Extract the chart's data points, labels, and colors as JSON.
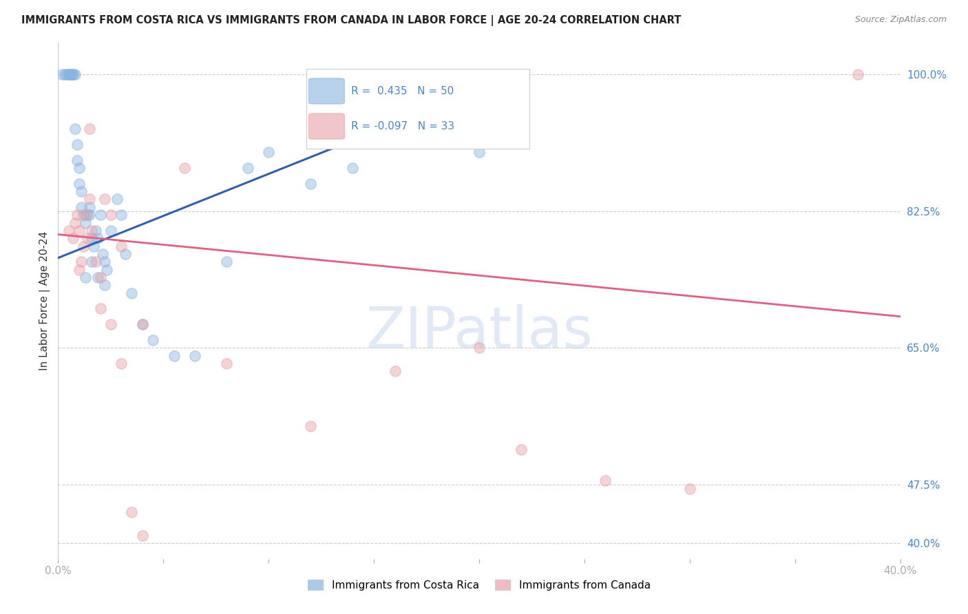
{
  "title": "IMMIGRANTS FROM COSTA RICA VS IMMIGRANTS FROM CANADA IN LABOR FORCE | AGE 20-24 CORRELATION CHART",
  "source": "Source: ZipAtlas.com",
  "ylabel": "In Labor Force | Age 20-24",
  "xlim": [
    0.0,
    0.4
  ],
  "ylim": [
    0.38,
    1.04
  ],
  "xticks": [
    0.0,
    0.05,
    0.1,
    0.15,
    0.2,
    0.25,
    0.3,
    0.35,
    0.4
  ],
  "xticklabels": [
    "0.0%",
    "",
    "",
    "",
    "",
    "",
    "",
    "",
    "40.0%"
  ],
  "yticks_right": [
    0.4,
    0.475,
    0.65,
    0.825,
    1.0
  ],
  "yticklabels_right": [
    "40.0%",
    "47.5%",
    "65.0%",
    "82.5%",
    "100.0%"
  ],
  "grid_color": "#cccccc",
  "background_color": "#ffffff",
  "blue_color": "#8ab4e0",
  "pink_color": "#e8a0a8",
  "blue_R": 0.435,
  "blue_N": 50,
  "pink_R": -0.097,
  "pink_N": 33,
  "blue_line_color": "#3060b0",
  "pink_line_color": "#e06080",
  "legend_label_blue": "Immigrants from Costa Rica",
  "legend_label_pink": "Immigrants from Canada",
  "watermark": "ZIPatlas",
  "blue_x": [
    0.002,
    0.003,
    0.004,
    0.005,
    0.005,
    0.006,
    0.006,
    0.007,
    0.007,
    0.008,
    0.008,
    0.009,
    0.009,
    0.01,
    0.01,
    0.011,
    0.011,
    0.012,
    0.013,
    0.014,
    0.015,
    0.015,
    0.016,
    0.017,
    0.018,
    0.019,
    0.02,
    0.021,
    0.022,
    0.023,
    0.025,
    0.028,
    0.03,
    0.032,
    0.035,
    0.04,
    0.045,
    0.055,
    0.065,
    0.08,
    0.09,
    0.1,
    0.12,
    0.14,
    0.16,
    0.2,
    0.013,
    0.016,
    0.019,
    0.022
  ],
  "blue_y": [
    1.0,
    1.0,
    1.0,
    1.0,
    1.0,
    1.0,
    1.0,
    1.0,
    1.0,
    1.0,
    0.93,
    0.91,
    0.89,
    0.88,
    0.86,
    0.85,
    0.83,
    0.82,
    0.81,
    0.82,
    0.82,
    0.83,
    0.79,
    0.78,
    0.8,
    0.79,
    0.82,
    0.77,
    0.76,
    0.75,
    0.8,
    0.84,
    0.82,
    0.77,
    0.72,
    0.68,
    0.66,
    0.64,
    0.64,
    0.76,
    0.88,
    0.9,
    0.86,
    0.88,
    0.94,
    0.9,
    0.74,
    0.76,
    0.74,
    0.73
  ],
  "pink_x": [
    0.005,
    0.007,
    0.008,
    0.009,
    0.01,
    0.011,
    0.012,
    0.013,
    0.014,
    0.015,
    0.016,
    0.018,
    0.02,
    0.022,
    0.025,
    0.03,
    0.04,
    0.06,
    0.08,
    0.12,
    0.16,
    0.2,
    0.22,
    0.26,
    0.3,
    0.38,
    0.01,
    0.015,
    0.02,
    0.025,
    0.03,
    0.035,
    0.04
  ],
  "pink_y": [
    0.8,
    0.79,
    0.81,
    0.82,
    0.8,
    0.76,
    0.78,
    0.82,
    0.79,
    0.84,
    0.8,
    0.76,
    0.74,
    0.84,
    0.82,
    0.78,
    0.68,
    0.88,
    0.63,
    0.55,
    0.62,
    0.65,
    0.52,
    0.48,
    0.47,
    1.0,
    0.75,
    0.93,
    0.7,
    0.68,
    0.63,
    0.44,
    0.41
  ],
  "blue_trend_x": [
    0.0,
    0.2
  ],
  "blue_trend_y": [
    0.765,
    0.98
  ],
  "pink_trend_x": [
    0.0,
    0.4
  ],
  "pink_trend_y": [
    0.795,
    0.69
  ]
}
